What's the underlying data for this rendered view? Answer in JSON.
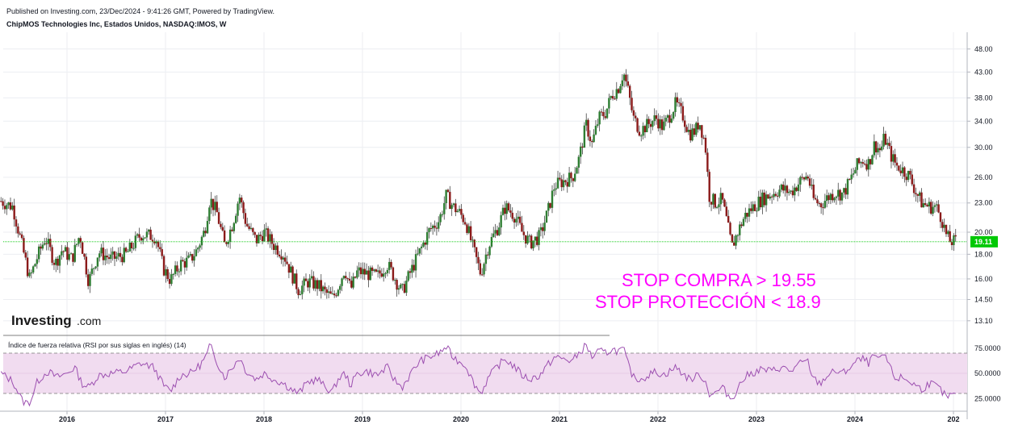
{
  "header": {
    "published": "Published on Investing.com, 23/Dec/2024 - 9:41:26 GMT, Powered by TradingView.",
    "instrument": "ChipMOS Technologies Inc, Estados Unidos, NASDAQ:IMOS, W"
  },
  "logo": {
    "main": "Investing",
    "dom": ".com"
  },
  "annotations": {
    "line1": "STOP COMPRA > 19.55",
    "line2": "STOP PROTECCIÓN < 18.9"
  },
  "colors": {
    "up": "#2e7d32",
    "down": "#8b1a1a",
    "rsi": "#9c4fb0",
    "rsi_band": "#f1dcf0",
    "last_price": "#00c805",
    "annotation": "#ff00ff"
  },
  "chart_data": [
    {
      "type": "candlestick",
      "title": "ChipMOS Technologies Inc, Estados Unidos, NASDAQ:IMOS, W",
      "x_ticks": [
        "2016",
        "2017",
        "2018",
        "2019",
        "2020",
        "2021",
        "2022",
        "2023",
        "2024",
        "202"
      ],
      "y_ticks": [
        "48.00",
        "43.00",
        "38.00",
        "34.00",
        "30.00",
        "26.00",
        "23.00",
        "20.00",
        "18.00",
        "16.00",
        "14.50",
        "13.10"
      ],
      "y_scale": "log",
      "ylim": [
        12.5,
        52
      ],
      "last_price": "19.11",
      "reference_level": 19.11,
      "series_close": [
        {
          "x": 2015.33,
          "y": 23.2
        },
        {
          "x": 2015.45,
          "y": 22.6
        },
        {
          "x": 2015.55,
          "y": 18.5
        },
        {
          "x": 2015.62,
          "y": 16.0
        },
        {
          "x": 2015.7,
          "y": 17.8
        },
        {
          "x": 2015.78,
          "y": 19.5
        },
        {
          "x": 2015.88,
          "y": 17.2
        },
        {
          "x": 2015.95,
          "y": 18.4
        },
        {
          "x": 2016.05,
          "y": 17.6
        },
        {
          "x": 2016.13,
          "y": 19.8
        },
        {
          "x": 2016.22,
          "y": 15.8
        },
        {
          "x": 2016.32,
          "y": 18.2
        },
        {
          "x": 2016.45,
          "y": 17.6
        },
        {
          "x": 2016.6,
          "y": 18.0
        },
        {
          "x": 2016.75,
          "y": 19.8
        },
        {
          "x": 2016.9,
          "y": 19.6
        },
        {
          "x": 2016.98,
          "y": 16.8
        },
        {
          "x": 2017.05,
          "y": 15.9
        },
        {
          "x": 2017.15,
          "y": 17.2
        },
        {
          "x": 2017.25,
          "y": 17.5
        },
        {
          "x": 2017.32,
          "y": 18.4
        },
        {
          "x": 2017.4,
          "y": 20.2
        },
        {
          "x": 2017.45,
          "y": 23.5
        },
        {
          "x": 2017.52,
          "y": 22.0
        },
        {
          "x": 2017.6,
          "y": 18.8
        },
        {
          "x": 2017.68,
          "y": 20.8
        },
        {
          "x": 2017.75,
          "y": 23.8
        },
        {
          "x": 2017.82,
          "y": 20.8
        },
        {
          "x": 2017.92,
          "y": 19.2
        },
        {
          "x": 2018.0,
          "y": 20.0
        },
        {
          "x": 2018.1,
          "y": 18.8
        },
        {
          "x": 2018.2,
          "y": 18.0
        },
        {
          "x": 2018.28,
          "y": 16.4
        },
        {
          "x": 2018.35,
          "y": 15.2
        },
        {
          "x": 2018.45,
          "y": 15.8
        },
        {
          "x": 2018.55,
          "y": 15.5
        },
        {
          "x": 2018.62,
          "y": 15.0
        },
        {
          "x": 2018.7,
          "y": 14.6
        },
        {
          "x": 2018.75,
          "y": 15.4
        },
        {
          "x": 2018.82,
          "y": 16.8
        },
        {
          "x": 2018.88,
          "y": 15.2
        },
        {
          "x": 2018.95,
          "y": 16.6
        },
        {
          "x": 2019.05,
          "y": 16.4
        },
        {
          "x": 2019.15,
          "y": 16.2
        },
        {
          "x": 2019.25,
          "y": 17.2
        },
        {
          "x": 2019.32,
          "y": 16.2
        },
        {
          "x": 2019.4,
          "y": 15.0
        },
        {
          "x": 2019.48,
          "y": 16.4
        },
        {
          "x": 2019.58,
          "y": 18.2
        },
        {
          "x": 2019.68,
          "y": 20.2
        },
        {
          "x": 2019.78,
          "y": 21.2
        },
        {
          "x": 2019.85,
          "y": 23.8
        },
        {
          "x": 2019.92,
          "y": 22.6
        },
        {
          "x": 2019.98,
          "y": 22.0
        },
        {
          "x": 2020.05,
          "y": 21.0
        },
        {
          "x": 2020.12,
          "y": 18.6
        },
        {
          "x": 2020.2,
          "y": 16.4
        },
        {
          "x": 2020.28,
          "y": 18.8
        },
        {
          "x": 2020.38,
          "y": 20.6
        },
        {
          "x": 2020.45,
          "y": 22.6
        },
        {
          "x": 2020.55,
          "y": 21.6
        },
        {
          "x": 2020.62,
          "y": 20.0
        },
        {
          "x": 2020.7,
          "y": 19.0
        },
        {
          "x": 2020.8,
          "y": 19.6
        },
        {
          "x": 2020.88,
          "y": 22.0
        },
        {
          "x": 2020.95,
          "y": 25.0
        },
        {
          "x": 2021.05,
          "y": 25.6
        },
        {
          "x": 2021.13,
          "y": 26.0
        },
        {
          "x": 2021.2,
          "y": 28.5
        },
        {
          "x": 2021.27,
          "y": 33.5
        },
        {
          "x": 2021.33,
          "y": 30.5
        },
        {
          "x": 2021.4,
          "y": 34.5
        },
        {
          "x": 2021.47,
          "y": 35.5
        },
        {
          "x": 2021.53,
          "y": 38.5
        },
        {
          "x": 2021.6,
          "y": 40.0
        },
        {
          "x": 2021.65,
          "y": 43.0
        },
        {
          "x": 2021.7,
          "y": 39.0
        },
        {
          "x": 2021.75,
          "y": 34.5
        },
        {
          "x": 2021.82,
          "y": 32.5
        },
        {
          "x": 2021.9,
          "y": 33.5
        },
        {
          "x": 2021.98,
          "y": 34.5
        },
        {
          "x": 2022.05,
          "y": 33.0
        },
        {
          "x": 2022.12,
          "y": 35.0
        },
        {
          "x": 2022.18,
          "y": 37.0
        },
        {
          "x": 2022.25,
          "y": 35.0
        },
        {
          "x": 2022.32,
          "y": 32.0
        },
        {
          "x": 2022.38,
          "y": 32.5
        },
        {
          "x": 2022.42,
          "y": 34.0
        },
        {
          "x": 2022.48,
          "y": 30.5
        },
        {
          "x": 2022.52,
          "y": 23.8
        },
        {
          "x": 2022.58,
          "y": 23.0
        },
        {
          "x": 2022.65,
          "y": 23.4
        },
        {
          "x": 2022.7,
          "y": 21.0
        },
        {
          "x": 2022.75,
          "y": 18.6
        },
        {
          "x": 2022.8,
          "y": 19.8
        },
        {
          "x": 2022.88,
          "y": 21.6
        },
        {
          "x": 2022.95,
          "y": 22.4
        },
        {
          "x": 2023.05,
          "y": 23.4
        },
        {
          "x": 2023.15,
          "y": 24.0
        },
        {
          "x": 2023.25,
          "y": 24.6
        },
        {
          "x": 2023.35,
          "y": 24.2
        },
        {
          "x": 2023.45,
          "y": 25.6
        },
        {
          "x": 2023.52,
          "y": 26.2
        },
        {
          "x": 2023.58,
          "y": 23.4
        },
        {
          "x": 2023.65,
          "y": 22.8
        },
        {
          "x": 2023.72,
          "y": 23.6
        },
        {
          "x": 2023.8,
          "y": 24.2
        },
        {
          "x": 2023.88,
          "y": 24.0
        },
        {
          "x": 2023.95,
          "y": 25.6
        },
        {
          "x": 2024.02,
          "y": 27.5
        },
        {
          "x": 2024.08,
          "y": 28.2
        },
        {
          "x": 2024.14,
          "y": 27.8
        },
        {
          "x": 2024.2,
          "y": 30.5
        },
        {
          "x": 2024.26,
          "y": 29.5
        },
        {
          "x": 2024.3,
          "y": 31.5
        },
        {
          "x": 2024.36,
          "y": 29.0
        },
        {
          "x": 2024.42,
          "y": 27.5
        },
        {
          "x": 2024.48,
          "y": 27.0
        },
        {
          "x": 2024.55,
          "y": 26.2
        },
        {
          "x": 2024.62,
          "y": 24.2
        },
        {
          "x": 2024.68,
          "y": 23.0
        },
        {
          "x": 2024.75,
          "y": 22.6
        },
        {
          "x": 2024.82,
          "y": 22.6
        },
        {
          "x": 2024.88,
          "y": 21.4
        },
        {
          "x": 2024.93,
          "y": 19.6
        },
        {
          "x": 2024.97,
          "y": 19.11
        }
      ]
    },
    {
      "type": "line",
      "title": "Índice de fuerza relativa (RSI por sus siglas en inglés) (14)",
      "y_ticks": [
        "75.0000",
        "50.0000",
        "25.0000"
      ],
      "ylim": [
        20,
        82
      ],
      "bands": [
        30,
        70
      ],
      "series": [
        {
          "x": 2015.33,
          "y": 50
        },
        {
          "x": 2015.45,
          "y": 42
        },
        {
          "x": 2015.55,
          "y": 22
        },
        {
          "x": 2015.62,
          "y": 20
        },
        {
          "x": 2015.7,
          "y": 42
        },
        {
          "x": 2015.8,
          "y": 52
        },
        {
          "x": 2015.9,
          "y": 46
        },
        {
          "x": 2016.0,
          "y": 50
        },
        {
          "x": 2016.08,
          "y": 56
        },
        {
          "x": 2016.15,
          "y": 40
        },
        {
          "x": 2016.22,
          "y": 36
        },
        {
          "x": 2016.32,
          "y": 48
        },
        {
          "x": 2016.45,
          "y": 50
        },
        {
          "x": 2016.6,
          "y": 52
        },
        {
          "x": 2016.75,
          "y": 60
        },
        {
          "x": 2016.88,
          "y": 56
        },
        {
          "x": 2016.98,
          "y": 38
        },
        {
          "x": 2017.05,
          "y": 32
        },
        {
          "x": 2017.15,
          "y": 48
        },
        {
          "x": 2017.25,
          "y": 50
        },
        {
          "x": 2017.35,
          "y": 58
        },
        {
          "x": 2017.42,
          "y": 68
        },
        {
          "x": 2017.45,
          "y": 78
        },
        {
          "x": 2017.52,
          "y": 62
        },
        {
          "x": 2017.6,
          "y": 46
        },
        {
          "x": 2017.68,
          "y": 56
        },
        {
          "x": 2017.75,
          "y": 66
        },
        {
          "x": 2017.82,
          "y": 52
        },
        {
          "x": 2017.92,
          "y": 44
        },
        {
          "x": 2018.0,
          "y": 50
        },
        {
          "x": 2018.1,
          "y": 44
        },
        {
          "x": 2018.2,
          "y": 40
        },
        {
          "x": 2018.28,
          "y": 34
        },
        {
          "x": 2018.35,
          "y": 30
        },
        {
          "x": 2018.45,
          "y": 42
        },
        {
          "x": 2018.55,
          "y": 44
        },
        {
          "x": 2018.62,
          "y": 36
        },
        {
          "x": 2018.7,
          "y": 32
        },
        {
          "x": 2018.75,
          "y": 44
        },
        {
          "x": 2018.82,
          "y": 50
        },
        {
          "x": 2018.88,
          "y": 38
        },
        {
          "x": 2018.95,
          "y": 50
        },
        {
          "x": 2019.05,
          "y": 52
        },
        {
          "x": 2019.15,
          "y": 48
        },
        {
          "x": 2019.25,
          "y": 56
        },
        {
          "x": 2019.32,
          "y": 44
        },
        {
          "x": 2019.4,
          "y": 36
        },
        {
          "x": 2019.48,
          "y": 48
        },
        {
          "x": 2019.58,
          "y": 62
        },
        {
          "x": 2019.68,
          "y": 66
        },
        {
          "x": 2019.78,
          "y": 70
        },
        {
          "x": 2019.85,
          "y": 76
        },
        {
          "x": 2019.92,
          "y": 66
        },
        {
          "x": 2019.98,
          "y": 62
        },
        {
          "x": 2020.05,
          "y": 58
        },
        {
          "x": 2020.12,
          "y": 42
        },
        {
          "x": 2020.2,
          "y": 30
        },
        {
          "x": 2020.28,
          "y": 46
        },
        {
          "x": 2020.38,
          "y": 58
        },
        {
          "x": 2020.45,
          "y": 64
        },
        {
          "x": 2020.55,
          "y": 56
        },
        {
          "x": 2020.62,
          "y": 48
        },
        {
          "x": 2020.7,
          "y": 44
        },
        {
          "x": 2020.8,
          "y": 48
        },
        {
          "x": 2020.88,
          "y": 58
        },
        {
          "x": 2020.95,
          "y": 66
        },
        {
          "x": 2021.05,
          "y": 64
        },
        {
          "x": 2021.13,
          "y": 62
        },
        {
          "x": 2021.2,
          "y": 70
        },
        {
          "x": 2021.27,
          "y": 78
        },
        {
          "x": 2021.33,
          "y": 66
        },
        {
          "x": 2021.4,
          "y": 72
        },
        {
          "x": 2021.47,
          "y": 70
        },
        {
          "x": 2021.53,
          "y": 74
        },
        {
          "x": 2021.6,
          "y": 72
        },
        {
          "x": 2021.65,
          "y": 74
        },
        {
          "x": 2021.7,
          "y": 58
        },
        {
          "x": 2021.75,
          "y": 46
        },
        {
          "x": 2021.82,
          "y": 44
        },
        {
          "x": 2021.9,
          "y": 48
        },
        {
          "x": 2021.98,
          "y": 52
        },
        {
          "x": 2022.05,
          "y": 48
        },
        {
          "x": 2022.12,
          "y": 52
        },
        {
          "x": 2022.18,
          "y": 56
        },
        {
          "x": 2022.25,
          "y": 50
        },
        {
          "x": 2022.32,
          "y": 44
        },
        {
          "x": 2022.38,
          "y": 46
        },
        {
          "x": 2022.42,
          "y": 50
        },
        {
          "x": 2022.48,
          "y": 42
        },
        {
          "x": 2022.52,
          "y": 30
        },
        {
          "x": 2022.58,
          "y": 30
        },
        {
          "x": 2022.65,
          "y": 36
        },
        {
          "x": 2022.7,
          "y": 30
        },
        {
          "x": 2022.75,
          "y": 24
        },
        {
          "x": 2022.8,
          "y": 34
        },
        {
          "x": 2022.88,
          "y": 46
        },
        {
          "x": 2022.95,
          "y": 50
        },
        {
          "x": 2023.05,
          "y": 54
        },
        {
          "x": 2023.15,
          "y": 52
        },
        {
          "x": 2023.25,
          "y": 56
        },
        {
          "x": 2023.35,
          "y": 52
        },
        {
          "x": 2023.45,
          "y": 60
        },
        {
          "x": 2023.52,
          "y": 62
        },
        {
          "x": 2023.58,
          "y": 44
        },
        {
          "x": 2023.65,
          "y": 40
        },
        {
          "x": 2023.72,
          "y": 48
        },
        {
          "x": 2023.8,
          "y": 52
        },
        {
          "x": 2023.88,
          "y": 50
        },
        {
          "x": 2023.95,
          "y": 56
        },
        {
          "x": 2024.02,
          "y": 62
        },
        {
          "x": 2024.08,
          "y": 64
        },
        {
          "x": 2024.14,
          "y": 60
        },
        {
          "x": 2024.2,
          "y": 68
        },
        {
          "x": 2024.26,
          "y": 62
        },
        {
          "x": 2024.3,
          "y": 70
        },
        {
          "x": 2024.36,
          "y": 54
        },
        {
          "x": 2024.42,
          "y": 44
        },
        {
          "x": 2024.48,
          "y": 46
        },
        {
          "x": 2024.55,
          "y": 42
        },
        {
          "x": 2024.62,
          "y": 38
        },
        {
          "x": 2024.68,
          "y": 34
        },
        {
          "x": 2024.75,
          "y": 40
        },
        {
          "x": 2024.82,
          "y": 38
        },
        {
          "x": 2024.88,
          "y": 32
        },
        {
          "x": 2024.93,
          "y": 26
        },
        {
          "x": 2024.97,
          "y": 28
        }
      ]
    }
  ]
}
